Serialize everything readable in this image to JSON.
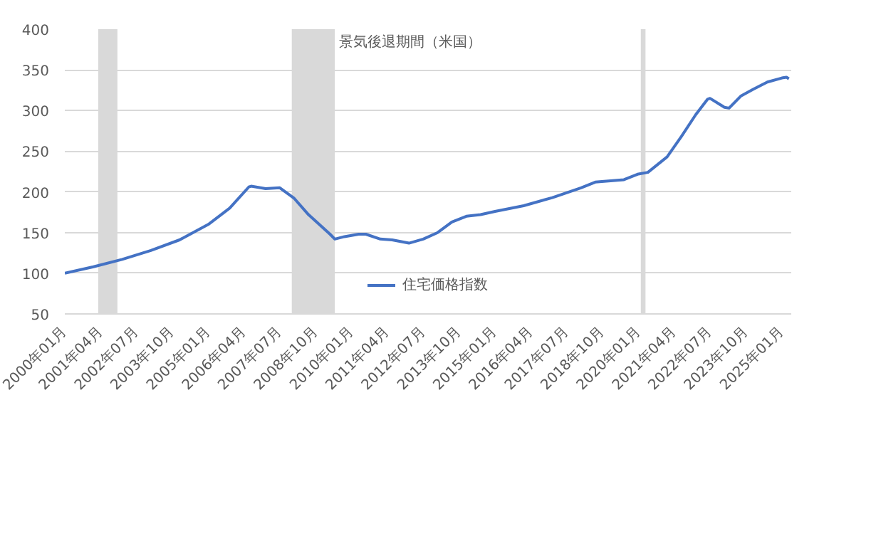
{
  "chart_data": {
    "type": "line",
    "legend": "bottom",
    "grid": "y",
    "x": [
      "2000-01",
      "2001-01",
      "2002-01",
      "2003-01",
      "2004-01",
      "2005-01",
      "2005-10",
      "2006-06",
      "2006-07",
      "2007-01",
      "2007-07",
      "2008-01",
      "2008-07",
      "2009-04",
      "2009-06",
      "2009-10",
      "2010-04",
      "2010-07",
      "2011-01",
      "2011-06",
      "2012-01",
      "2012-07",
      "2013-01",
      "2013-07",
      "2014-01",
      "2014-07",
      "2015-01",
      "2016-01",
      "2017-01",
      "2018-01",
      "2018-07",
      "2019-07",
      "2020-01",
      "2020-05",
      "2021-01",
      "2021-07",
      "2022-01",
      "2022-06",
      "2022-07",
      "2023-01",
      "2023-03",
      "2023-08",
      "2024-01",
      "2024-07",
      "2025-01",
      "2025-03",
      "2025-04"
    ],
    "series": [
      {
        "name": "住宅価格指数",
        "color": "#4472c4",
        "values": [
          100,
          108,
          117,
          128,
          141,
          160,
          180,
          206,
          207,
          204,
          205,
          192,
          172,
          148,
          142,
          145,
          148,
          148,
          142,
          141,
          137,
          142,
          150,
          163,
          170,
          172,
          176,
          183,
          193,
          205,
          212,
          215,
          222,
          224,
          243,
          268,
          295,
          314,
          315,
          304,
          303,
          318,
          326,
          335,
          340,
          341,
          339
        ]
      }
    ],
    "bands": [
      {
        "axis": "x",
        "from": "2001-03",
        "to": "2001-11",
        "color": "#d9d9d9"
      },
      {
        "axis": "x",
        "from": "2007-12",
        "to": "2009-06",
        "label": "景気後退期間（米国）",
        "color": "#d9d9d9"
      },
      {
        "axis": "x",
        "from": "2020-02",
        "to": "2020-04",
        "color": "#d9d9d9"
      }
    ],
    "xlim": [
      "2000-01",
      "2025-05"
    ],
    "ylim": [
      50,
      400
    ],
    "yticks": [
      50,
      100,
      150,
      200,
      250,
      300,
      350,
      400
    ],
    "xticks": [
      {
        "value": "2000-01",
        "label": "2000年01月"
      },
      {
        "value": "2001-04",
        "label": "2001年04月"
      },
      {
        "value": "2002-07",
        "label": "2002年07月"
      },
      {
        "value": "2003-10",
        "label": "2003年10月"
      },
      {
        "value": "2005-01",
        "label": "2005年01月"
      },
      {
        "value": "2006-04",
        "label": "2006年04月"
      },
      {
        "value": "2007-07",
        "label": "2007年07月"
      },
      {
        "value": "2008-10",
        "label": "2008年10月"
      },
      {
        "value": "2010-01",
        "label": "2010年01月"
      },
      {
        "value": "2011-04",
        "label": "2011年04月"
      },
      {
        "value": "2012-07",
        "label": "2012年07月"
      },
      {
        "value": "2013-10",
        "label": "2013年10月"
      },
      {
        "value": "2015-01",
        "label": "2015年01月"
      },
      {
        "value": "2016-04",
        "label": "2016年04月"
      },
      {
        "value": "2017-07",
        "label": "2017年07月"
      },
      {
        "value": "2018-10",
        "label": "2018年10月"
      },
      {
        "value": "2020-01",
        "label": "2020年01月"
      },
      {
        "value": "2021-04",
        "label": "2021年04月"
      },
      {
        "value": "2022-07",
        "label": "2022年07月"
      },
      {
        "value": "2023-10",
        "label": "2023年10月"
      },
      {
        "value": "2025-01",
        "label": "2025年01月"
      }
    ]
  }
}
